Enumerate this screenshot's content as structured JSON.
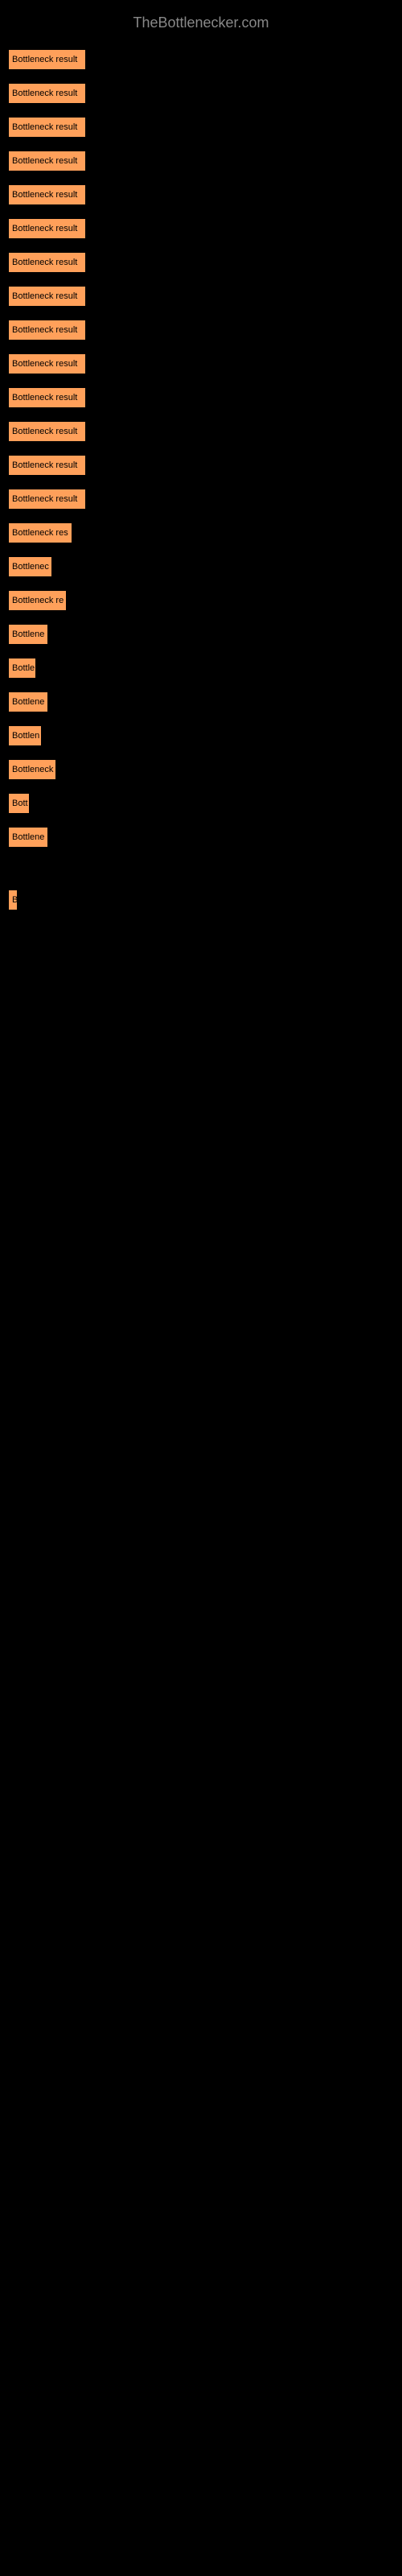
{
  "header": {
    "title": "TheBottlenecker.com"
  },
  "chart": {
    "type": "bar",
    "bar_color": "#ffa05a",
    "background_color": "#000000",
    "text_color": "#000000",
    "label_color": "#cccccc",
    "bars": [
      {
        "label": "",
        "text": "Bottleneck result",
        "width": 97
      },
      {
        "label": "",
        "text": "Bottleneck result",
        "width": 97
      },
      {
        "label": "",
        "text": "Bottleneck result",
        "width": 97
      },
      {
        "label": "",
        "text": "Bottleneck result",
        "width": 97
      },
      {
        "label": "",
        "text": "Bottleneck result",
        "width": 97
      },
      {
        "label": "",
        "text": "Bottleneck result",
        "width": 97
      },
      {
        "label": "",
        "text": "Bottleneck result",
        "width": 97
      },
      {
        "label": "",
        "text": "Bottleneck result",
        "width": 97
      },
      {
        "label": "",
        "text": "Bottleneck result",
        "width": 97
      },
      {
        "label": "",
        "text": "Bottleneck result",
        "width": 97
      },
      {
        "label": "",
        "text": "Bottleneck result",
        "width": 97
      },
      {
        "label": "",
        "text": "Bottleneck result",
        "width": 97
      },
      {
        "label": "",
        "text": "Bottleneck result",
        "width": 97
      },
      {
        "label": "",
        "text": "Bottleneck result",
        "width": 97
      },
      {
        "label": "",
        "text": "Bottleneck res",
        "width": 80
      },
      {
        "label": "",
        "text": "Bottlenec",
        "width": 55
      },
      {
        "label": "",
        "text": "Bottleneck re",
        "width": 73
      },
      {
        "label": "",
        "text": "Bottlene",
        "width": 50
      },
      {
        "label": "",
        "text": "Bottle",
        "width": 35
      },
      {
        "label": "",
        "text": "Bottlene",
        "width": 50
      },
      {
        "label": "",
        "text": "Bottlen",
        "width": 42
      },
      {
        "label": "",
        "text": "Bottleneck",
        "width": 60
      },
      {
        "label": "",
        "text": "Bott",
        "width": 27
      },
      {
        "label": "",
        "text": "Bottlene",
        "width": 50
      },
      {
        "label": "",
        "text": "",
        "width": 0
      },
      {
        "label": "",
        "text": "",
        "width": 0
      },
      {
        "label": "",
        "text": "",
        "width": 0
      },
      {
        "label": "",
        "text": "B",
        "width": 12
      },
      {
        "label": "",
        "text": "",
        "width": 0
      },
      {
        "label": "",
        "text": "",
        "width": 0
      }
    ]
  }
}
